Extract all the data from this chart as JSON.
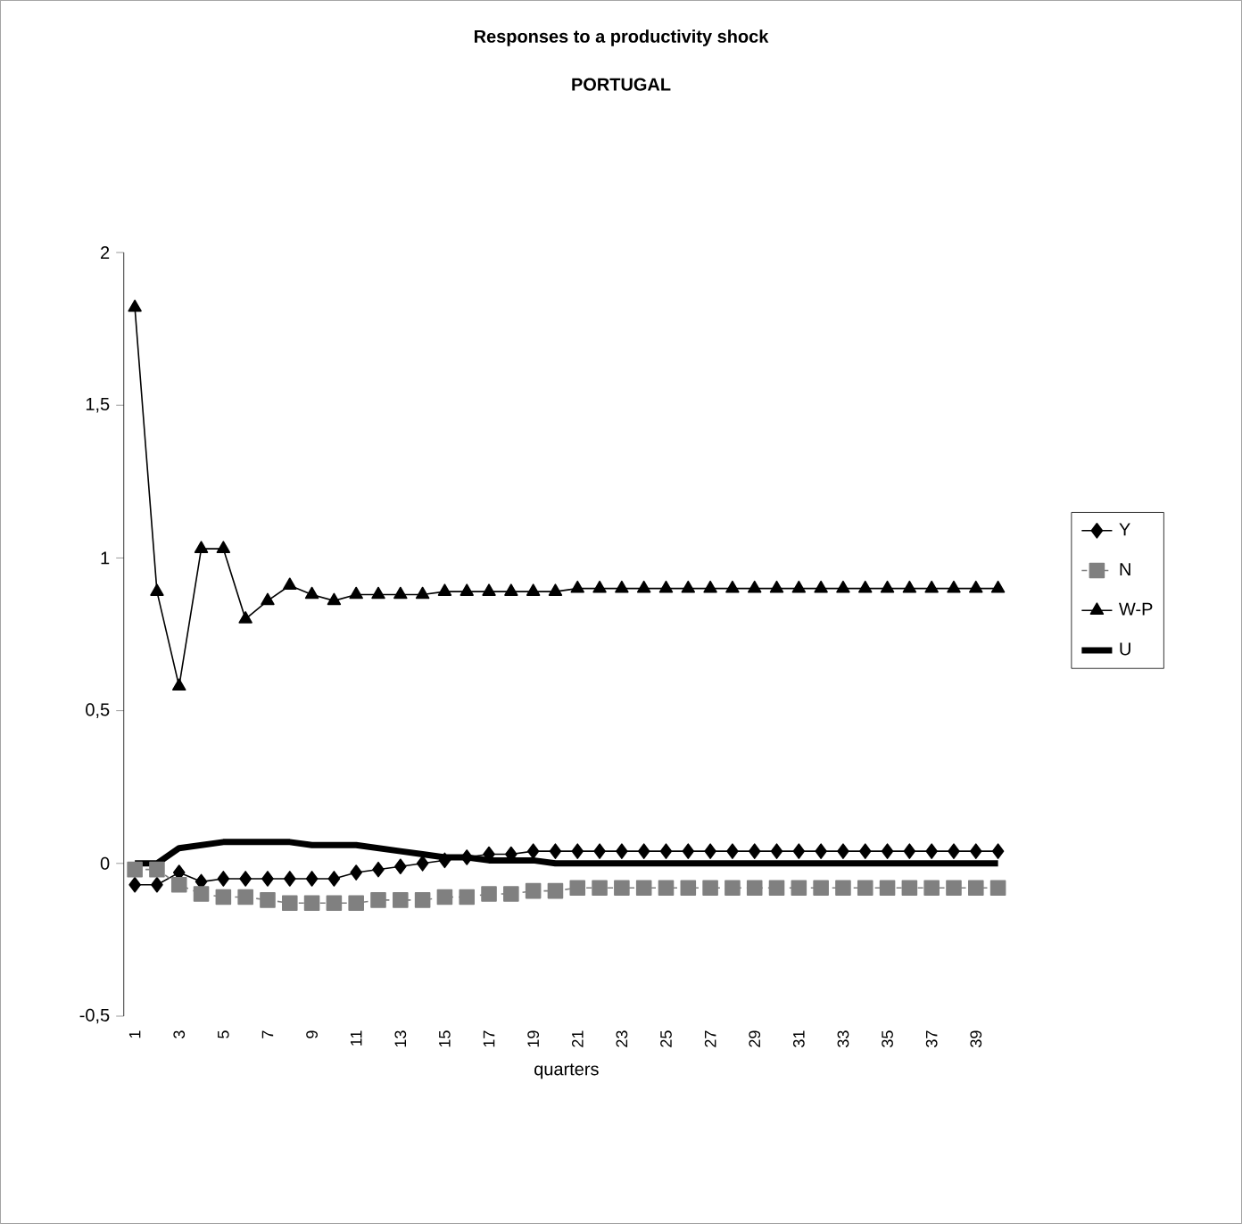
{
  "chart_data": {
    "type": "line",
    "title": "Responses to a productivity shock",
    "subtitle": "PORTUGAL",
    "xlabel": "quarters",
    "categories": [
      "1",
      null,
      "3",
      null,
      "5",
      null,
      "7",
      null,
      "9",
      null,
      "11",
      null,
      "13",
      null,
      "15",
      null,
      "17",
      null,
      "19",
      null,
      "21",
      null,
      "23",
      null,
      "25",
      null,
      "27",
      null,
      "29",
      null,
      "31",
      null,
      "33",
      null,
      "35",
      null,
      "37",
      null,
      "39",
      null
    ],
    "ylim": [
      -0.5,
      2
    ],
    "yticks": [
      {
        "value": -0.5,
        "label": "-0,5"
      },
      0,
      {
        "value": 0.5,
        "label": "0,5"
      },
      1,
      {
        "value": 1.5,
        "label": "1,5"
      },
      2
    ],
    "legend": "right",
    "series": [
      {
        "name": "Y",
        "color": "#000000",
        "marker": "diamond",
        "line_style": "solid",
        "values": [
          -0.07,
          -0.07,
          -0.03,
          -0.06,
          -0.05,
          -0.05,
          -0.05,
          -0.05,
          -0.05,
          -0.05,
          -0.03,
          -0.02,
          -0.01,
          0.0,
          0.01,
          0.02,
          0.03,
          0.03,
          0.04,
          0.04,
          0.04,
          0.04,
          0.04,
          0.04,
          0.04,
          0.04,
          0.04,
          0.04,
          0.04,
          0.04,
          0.04,
          0.04,
          0.04,
          0.04,
          0.04,
          0.04,
          0.04,
          0.04,
          0.04,
          0.04
        ]
      },
      {
        "name": "N",
        "color": "#808080",
        "marker": "square",
        "line_style": "dashed",
        "values": [
          -0.02,
          -0.02,
          -0.07,
          -0.1,
          -0.11,
          -0.11,
          -0.12,
          -0.13,
          -0.13,
          -0.13,
          -0.13,
          -0.12,
          -0.12,
          -0.12,
          -0.11,
          -0.11,
          -0.1,
          -0.1,
          -0.09,
          -0.09,
          -0.08,
          -0.08,
          -0.08,
          -0.08,
          -0.08,
          -0.08,
          -0.08,
          -0.08,
          -0.08,
          -0.08,
          -0.08,
          -0.08,
          -0.08,
          -0.08,
          -0.08,
          -0.08,
          -0.08,
          -0.08,
          -0.08,
          -0.08
        ]
      },
      {
        "name": "W-P",
        "color": "#000000",
        "marker": "triangle",
        "line_style": "solid",
        "values": [
          1.82,
          0.89,
          0.58,
          1.03,
          1.03,
          0.8,
          0.86,
          0.91,
          0.88,
          0.86,
          0.88,
          0.88,
          0.88,
          0.88,
          0.89,
          0.89,
          0.89,
          0.89,
          0.89,
          0.89,
          0.9,
          0.9,
          0.9,
          0.9,
          0.9,
          0.9,
          0.9,
          0.9,
          0.9,
          0.9,
          0.9,
          0.9,
          0.9,
          0.9,
          0.9,
          0.9,
          0.9,
          0.9,
          0.9,
          0.9
        ]
      },
      {
        "name": "U",
        "color": "#000000",
        "marker": "none",
        "line_style": "solid",
        "values": [
          0.0,
          0.0,
          0.05,
          0.06,
          0.07,
          0.07,
          0.07,
          0.07,
          0.06,
          0.06,
          0.06,
          0.05,
          0.04,
          0.03,
          0.02,
          0.02,
          0.01,
          0.01,
          0.01,
          0.0,
          0.0,
          0.0,
          0.0,
          0.0,
          0.0,
          0.0,
          0.0,
          0.0,
          0.0,
          0.0,
          0.0,
          0.0,
          0.0,
          0.0,
          0.0,
          0.0,
          0.0,
          0.0,
          0.0,
          0.0
        ]
      }
    ]
  }
}
